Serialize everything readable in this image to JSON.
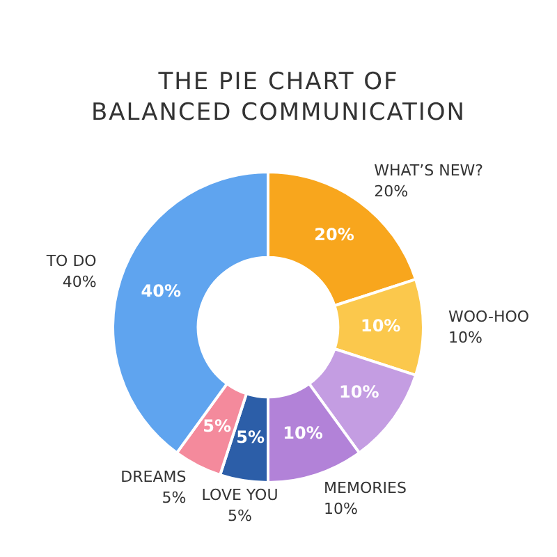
{
  "chart_data": {
    "type": "donut",
    "title": "THE PIE CHART OF BALANCED COMMUNICATION",
    "categories": [
      "WHAT’S NEW?",
      "WOO-HOO",
      null,
      "MEMORIES",
      "LOVE YOU",
      "DREAMS",
      "TO DO"
    ],
    "values": [
      20,
      10,
      10,
      10,
      5,
      5,
      40
    ],
    "value_labels": [
      "20%",
      "10%",
      "10%",
      "10%",
      "5%",
      "5%",
      "40%"
    ],
    "colors": [
      "#f8a61d",
      "#fbc84c",
      "#c49de2",
      "#b282d8",
      "#2c5ea8",
      "#f48a9c",
      "#5fa4ef"
    ],
    "legend": false
  }
}
